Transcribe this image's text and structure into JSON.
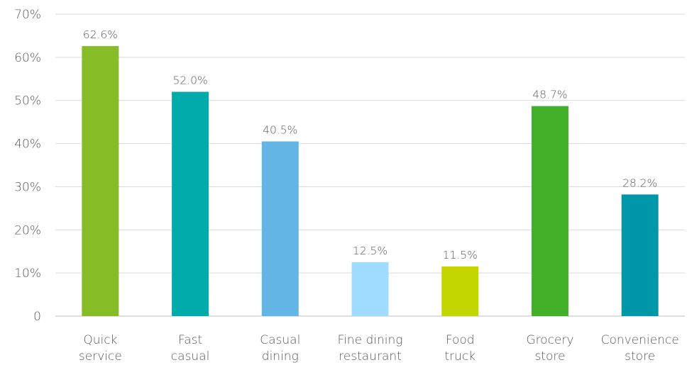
{
  "chart_data": {
    "type": "bar",
    "title": "",
    "xlabel": "",
    "ylabel": "",
    "ylim": [
      0,
      70
    ],
    "yticks": [
      0,
      10,
      20,
      30,
      40,
      50,
      60,
      70
    ],
    "ytick_labels": [
      "0",
      "10%",
      "20%",
      "30%",
      "40%",
      "50%",
      "60%",
      "70%"
    ],
    "grid": true,
    "legend": "none",
    "categories": [
      [
        "Quick",
        "service"
      ],
      [
        "Fast",
        "casual"
      ],
      [
        "Casual",
        "dining"
      ],
      [
        "Fine dining",
        "restaurant"
      ],
      [
        "Food",
        "truck"
      ],
      [
        "Grocery",
        "store"
      ],
      [
        "Convenience",
        "store"
      ]
    ],
    "values": [
      62.6,
      52.0,
      40.5,
      12.5,
      11.5,
      48.7,
      28.2
    ],
    "value_labels": [
      "62.6%",
      "52.0%",
      "40.5%",
      "12.5%",
      "11.5%",
      "48.7%",
      "28.2%"
    ],
    "colors": [
      "#86bc25",
      "#00aba9",
      "#62b5e5",
      "#a0dcff",
      "#c4d600",
      "#43b02a",
      "#0097a9"
    ]
  }
}
